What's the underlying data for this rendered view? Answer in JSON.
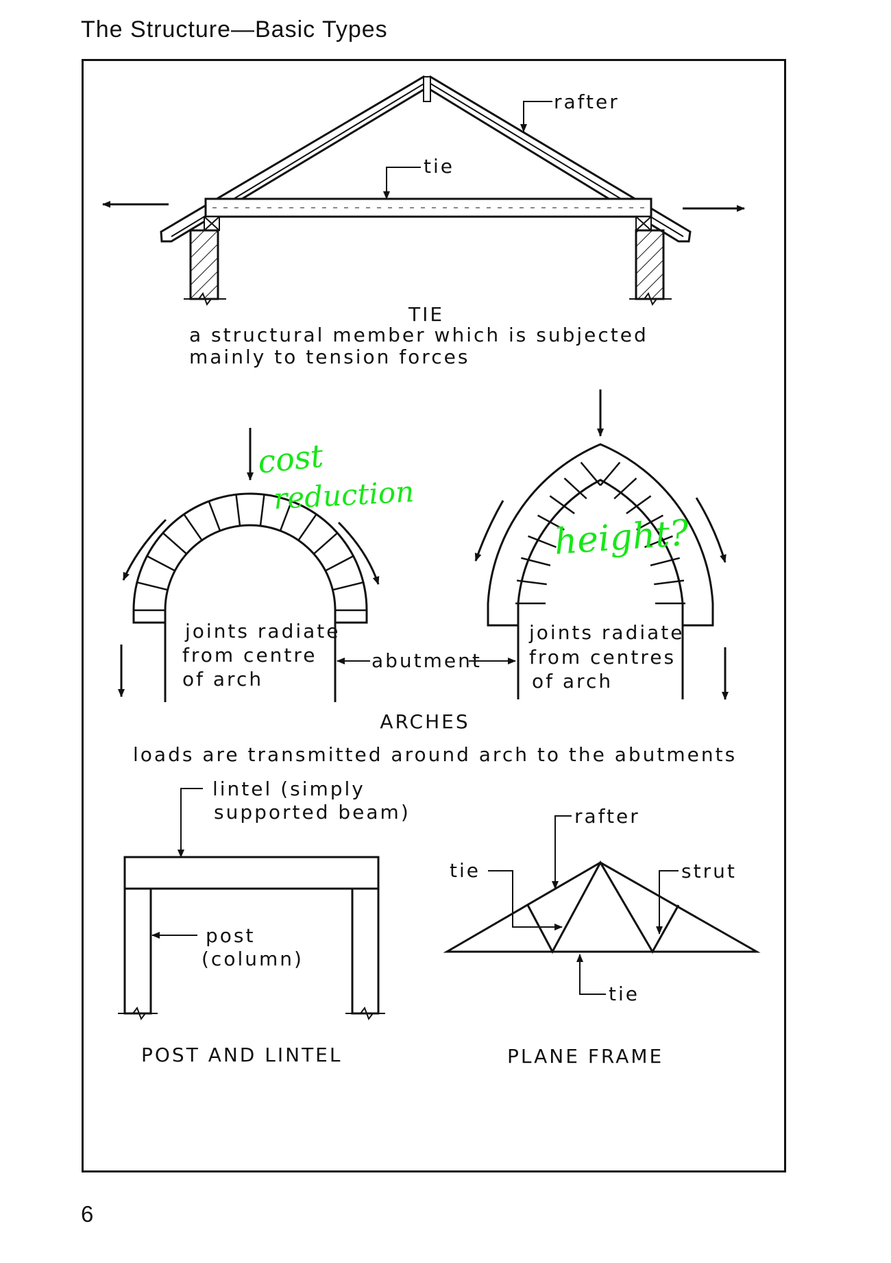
{
  "header": {
    "running_head": "The Structure—Basic Types"
  },
  "footer": {
    "page_number": "6"
  },
  "tie_diagram": {
    "label_rafter": "rafter",
    "label_tie": "tie",
    "title": "TIE",
    "desc_line1": "a structural member which is subjected",
    "desc_line2": "mainly to tension forces"
  },
  "arches_diagram": {
    "left_note_line1": "joints radiate",
    "left_note_line2": "from centre",
    "left_note_line3": "of arch",
    "right_note_line1": "joints radiate",
    "right_note_line2": "from centres",
    "right_note_line3": "of arch",
    "label_abutment": "abutment",
    "title": "ARCHES",
    "desc": "loads are transmitted around arch to the abutments"
  },
  "post_lintel_diagram": {
    "label_lintel_line1": "lintel (simply",
    "label_lintel_line2": "supported beam)",
    "label_post_line1": "post",
    "label_post_line2": "(column)",
    "title": "POST AND LINTEL"
  },
  "plane_frame_diagram": {
    "label_rafter": "rafter",
    "label_tie_top": "tie",
    "label_strut": "strut",
    "label_tie_bottom": "tie",
    "title": "PLANE FRAME"
  },
  "handwritten_annotations": {
    "note_1_line1": "cost",
    "note_1_line2": "reduction",
    "note_2": "height?",
    "ink_color": "#19e619"
  }
}
